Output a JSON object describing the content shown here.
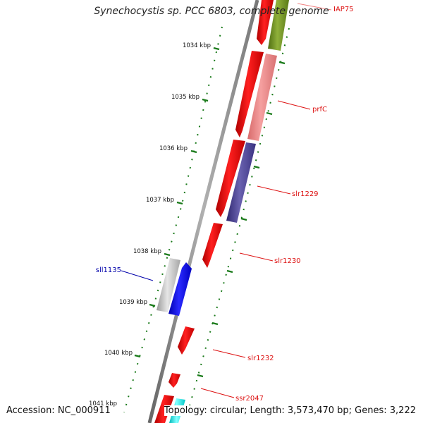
{
  "map": {
    "title": "Synechocystis sp. PCC 6803, complete genome",
    "accession": "Accession: NC_000911",
    "topology": "Topology: circular; Length: 3,573,470 bp; Genes: 3,222"
  },
  "scale_labels": [
    {
      "text": "1034 kbp"
    },
    {
      "text": "1035 kbp"
    },
    {
      "text": "1036 kbp"
    },
    {
      "text": "1037 kbp"
    },
    {
      "text": "1038 kbp"
    },
    {
      "text": "1039 kbp"
    },
    {
      "text": "1040 kbp"
    },
    {
      "text": "1041 kbp"
    }
  ],
  "genes": [
    {
      "name": "IAP75",
      "color": "#dd1111"
    },
    {
      "name": "prfC",
      "color": "#dd1111"
    },
    {
      "name": "slr1229",
      "color": "#dd1111"
    },
    {
      "name": "slr1230",
      "color": "#dd1111"
    },
    {
      "name": "sll1135",
      "color": "#0000aa"
    },
    {
      "name": "slr1232",
      "color": "#dd1111"
    },
    {
      "name": "ssr2047",
      "color": "#dd1111"
    }
  ],
  "colors": {
    "cds_red": "#ff0000",
    "cds_pink": "#f08080",
    "cds_olive": "#6b8e23",
    "cds_slate": "#483d8b",
    "cds_blue": "#0000ff",
    "cds_gray": "#bbbbbb",
    "cds_cyan": "#00ffff",
    "backbone": "#888888",
    "tick": "#006600"
  }
}
